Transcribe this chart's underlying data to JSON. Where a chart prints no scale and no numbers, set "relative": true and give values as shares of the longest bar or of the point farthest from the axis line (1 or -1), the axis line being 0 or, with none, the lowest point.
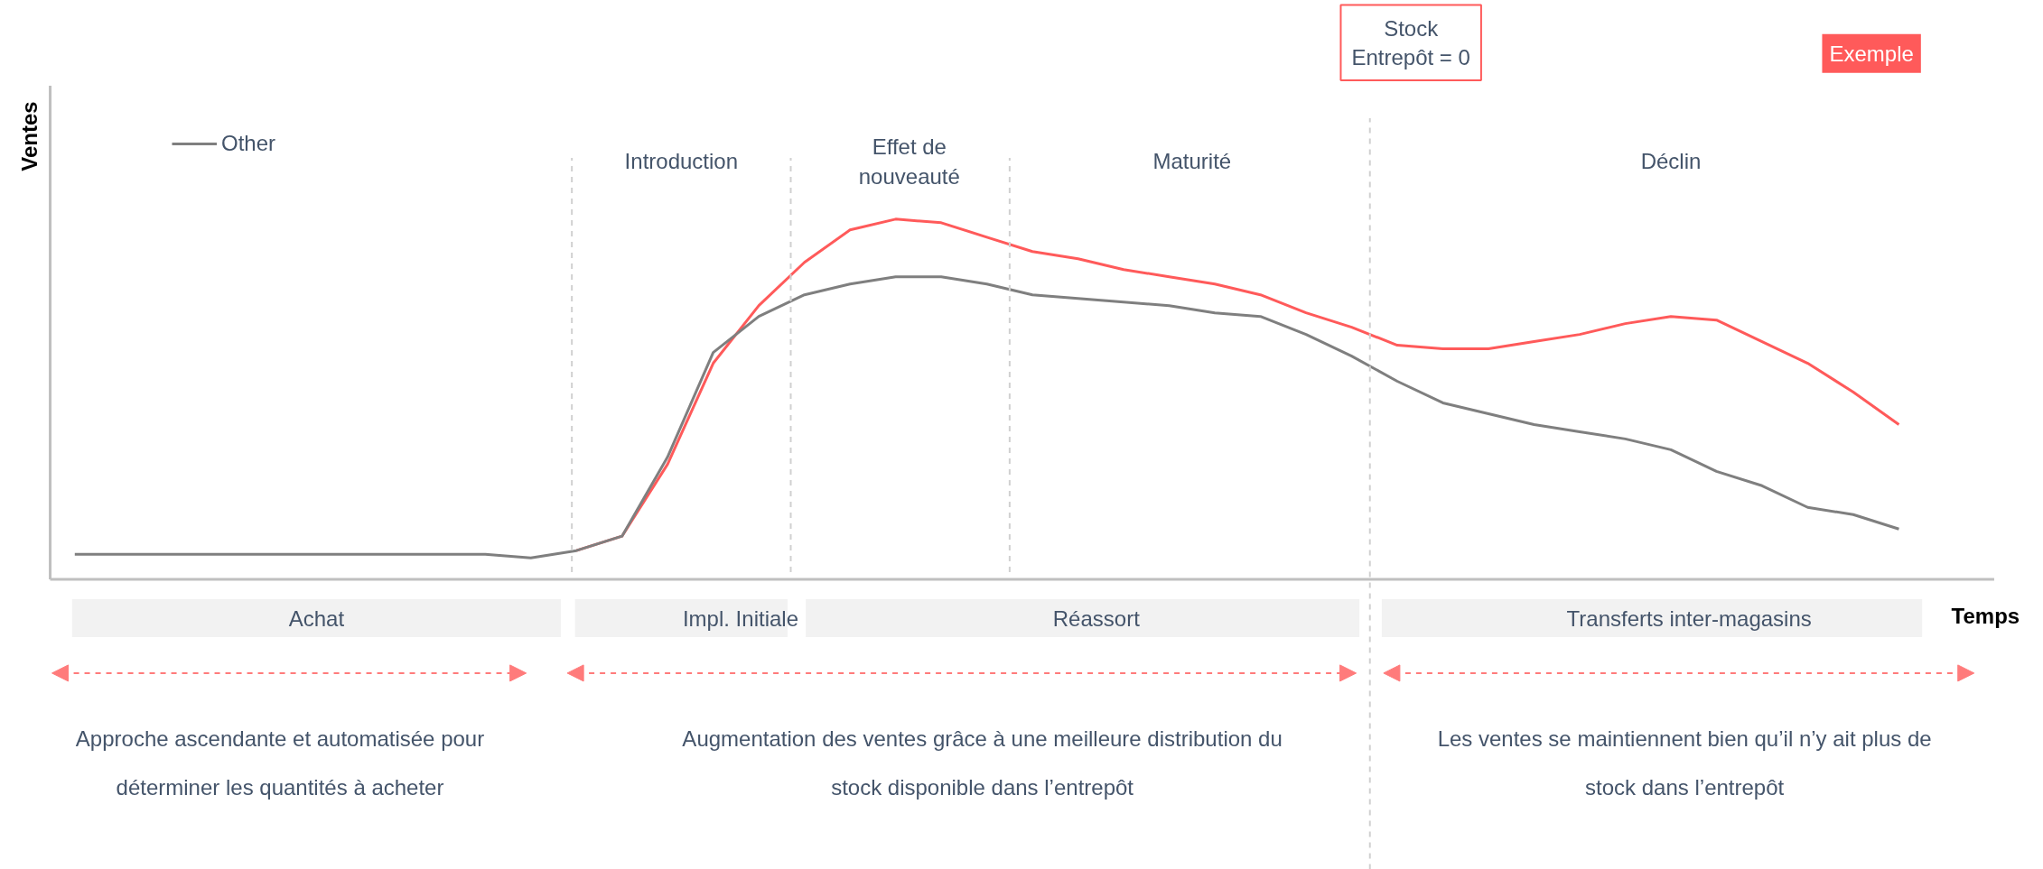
{
  "chart_data": {
    "type": "line",
    "relative": true,
    "xlabel": "Temps",
    "ylabel": "Ventes",
    "categories": [
      null,
      null,
      null,
      null,
      null,
      null,
      null,
      null,
      null,
      null,
      null,
      null,
      null,
      null,
      null,
      null,
      null,
      null,
      null,
      null,
      null,
      null,
      null,
      null,
      null,
      null,
      null,
      null,
      null,
      null,
      null,
      null,
      null,
      null,
      null,
      null,
      null,
      null,
      null,
      null,
      null
    ],
    "series": [
      {
        "color": "#ff5a5a",
        "values": [
          null,
          null,
          null,
          null,
          null,
          null,
          null,
          null,
          null,
          null,
          null,
          0.08,
          0.12,
          0.32,
          0.6,
          0.76,
          0.88,
          0.97,
          1.0,
          0.99,
          0.95,
          0.91,
          0.89,
          0.86,
          0.84,
          0.82,
          0.79,
          0.74,
          0.7,
          0.65,
          0.64,
          0.64,
          0.66,
          0.68,
          0.71,
          0.73,
          0.72,
          0.66,
          0.6,
          0.52,
          0.43
        ]
      },
      {
        "name": "Other",
        "color": "#7f7f7f",
        "values": [
          0.07,
          0.07,
          0.07,
          0.07,
          0.07,
          0.07,
          0.07,
          0.07,
          0.07,
          0.07,
          0.06,
          0.08,
          0.12,
          0.34,
          0.63,
          0.73,
          0.79,
          0.82,
          0.84,
          0.84,
          0.82,
          0.79,
          0.78,
          0.77,
          0.76,
          0.74,
          0.73,
          0.68,
          0.62,
          0.55,
          0.49,
          0.46,
          0.43,
          0.41,
          0.39,
          0.36,
          0.3,
          0.26,
          0.2,
          0.18,
          0.14
        ]
      }
    ],
    "legend": "top left",
    "annotations": [
      "Stock\nEntrepôt = 0",
      "Introduction",
      "Effet de\nnouveauté",
      "Maturité",
      "Déclin",
      "Exemple",
      "Achat",
      "Impl. Initiale",
      "Réassort",
      "Transferts inter-magasins",
      "Approche ascendante et automatisée pour\ndéterminer les quantités à acheter",
      "Augmentation des ventes grâce à une meilleure distribution du\nstock disponible dans l’entrepôt",
      "Les ventes se maintiennent bien qu’il n’y ait plus de\nstock dans l’entrepôt"
    ]
  }
}
